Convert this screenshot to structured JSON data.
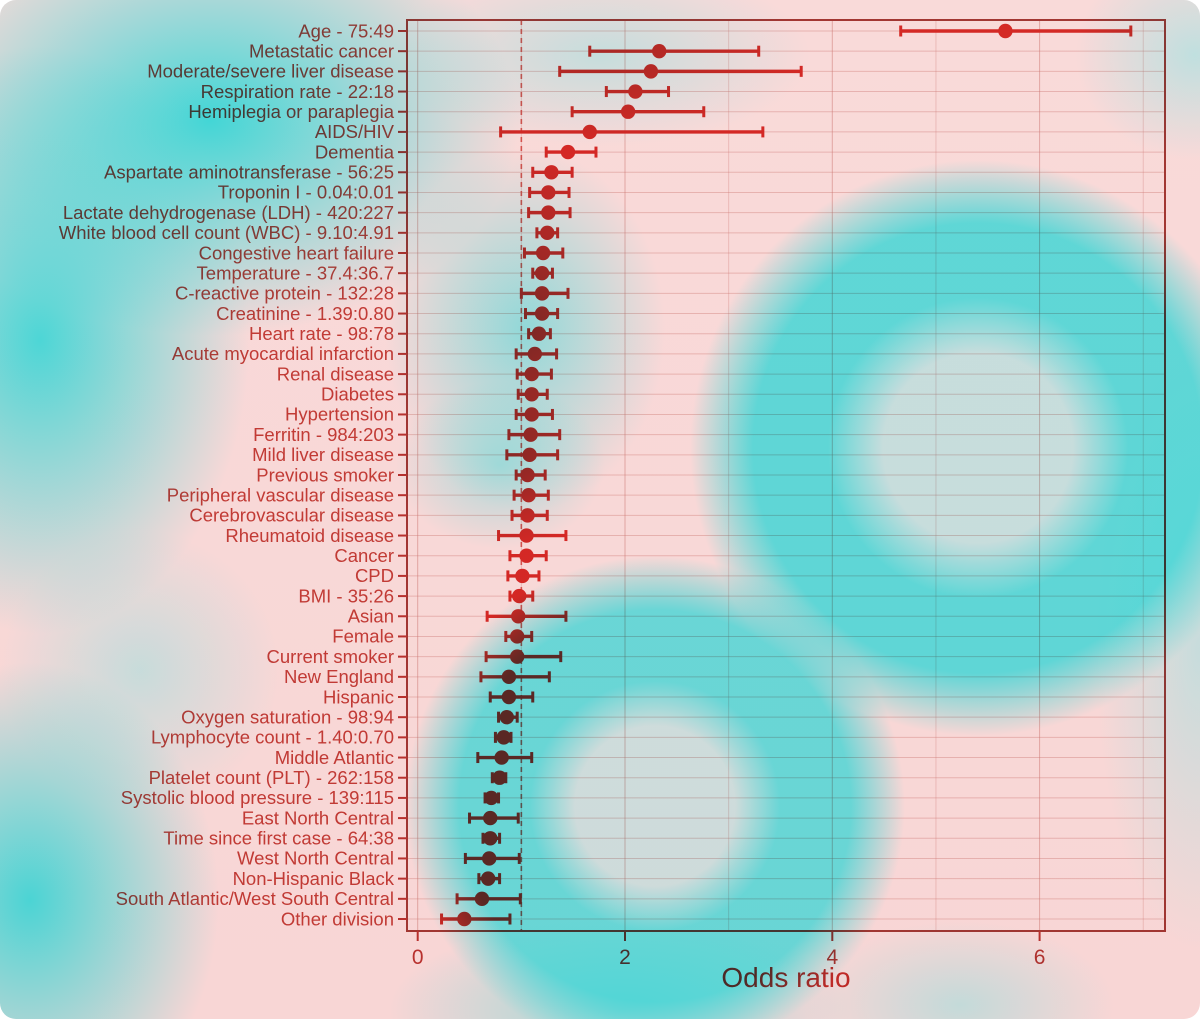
{
  "colors": {
    "background_pink": "#f8d7d6",
    "virus_cyan": "#34d6d6",
    "marker_red": "#d92f2b",
    "label_red": "#c7453f",
    "tick_red": "#bd3a37",
    "grid_red": "#d08680",
    "panel_border": "#a6403c",
    "refline_red": "#da615c"
  },
  "chart_data": {
    "type": "scatter",
    "subtype": "forest-plot",
    "title": "",
    "xlabel": "Odds ratio",
    "x_ticks": [
      0,
      2,
      4,
      6
    ],
    "x_gridlines": [
      0,
      1,
      2,
      3,
      4,
      5,
      6,
      7
    ],
    "xlim": [
      -0.1,
      7.31
    ],
    "reference_line": 1,
    "grid": true,
    "legend": "none",
    "rows": [
      {
        "label": "Age - 75:49",
        "or": 5.67,
        "lo": 4.66,
        "hi": 6.88
      },
      {
        "label": "Metastatic cancer",
        "or": 2.33,
        "lo": 1.66,
        "hi": 3.29
      },
      {
        "label": "Moderate/severe liver disease",
        "or": 2.25,
        "lo": 1.37,
        "hi": 3.7
      },
      {
        "label": "Respiration rate - 22:18",
        "or": 2.1,
        "lo": 1.82,
        "hi": 2.42
      },
      {
        "label": "Hemiplegia or paraplegia",
        "or": 2.03,
        "lo": 1.49,
        "hi": 2.76
      },
      {
        "label": "AIDS/HIV",
        "or": 1.66,
        "lo": 0.8,
        "hi": 3.33
      },
      {
        "label": "Dementia",
        "or": 1.45,
        "lo": 1.24,
        "hi": 1.72
      },
      {
        "label": "Aspartate aminotransferase - 56:25",
        "or": 1.29,
        "lo": 1.11,
        "hi": 1.49
      },
      {
        "label": "Troponin I - 0.04:0.01",
        "or": 1.26,
        "lo": 1.08,
        "hi": 1.46
      },
      {
        "label": "Lactate dehydrogenase (LDH) - 420:227",
        "or": 1.26,
        "lo": 1.07,
        "hi": 1.47
      },
      {
        "label": "White blood cell count (WBC) - 9.10:4.91",
        "or": 1.25,
        "lo": 1.15,
        "hi": 1.35
      },
      {
        "label": "Congestive heart failure",
        "or": 1.21,
        "lo": 1.03,
        "hi": 1.4
      },
      {
        "label": "Temperature - 37.4:36.7",
        "or": 1.2,
        "lo": 1.11,
        "hi": 1.3
      },
      {
        "label": "C-reactive protein - 132:28",
        "or": 1.2,
        "lo": 1.0,
        "hi": 1.45
      },
      {
        "label": "Creatinine - 1.39:0.80",
        "or": 1.2,
        "lo": 1.04,
        "hi": 1.35
      },
      {
        "label": "Heart rate - 98:78",
        "or": 1.17,
        "lo": 1.07,
        "hi": 1.28
      },
      {
        "label": "Acute myocardial infarction",
        "or": 1.13,
        "lo": 0.95,
        "hi": 1.34
      },
      {
        "label": "Renal disease",
        "or": 1.1,
        "lo": 0.96,
        "hi": 1.29
      },
      {
        "label": "Diabetes",
        "or": 1.1,
        "lo": 0.97,
        "hi": 1.25
      },
      {
        "label": "Hypertension",
        "or": 1.1,
        "lo": 0.95,
        "hi": 1.3
      },
      {
        "label": "Ferritin - 984:203",
        "or": 1.09,
        "lo": 0.88,
        "hi": 1.37
      },
      {
        "label": "Mild liver disease",
        "or": 1.08,
        "lo": 0.86,
        "hi": 1.35
      },
      {
        "label": "Previous smoker",
        "or": 1.06,
        "lo": 0.95,
        "hi": 1.23
      },
      {
        "label": "Peripheral vascular disease",
        "or": 1.07,
        "lo": 0.93,
        "hi": 1.26
      },
      {
        "label": "Cerebrovascular disease",
        "or": 1.06,
        "lo": 0.91,
        "hi": 1.25
      },
      {
        "label": "Rheumatoid disease",
        "or": 1.05,
        "lo": 0.78,
        "hi": 1.43
      },
      {
        "label": "Cancer",
        "or": 1.05,
        "lo": 0.89,
        "hi": 1.24
      },
      {
        "label": "CPD",
        "or": 1.01,
        "lo": 0.87,
        "hi": 1.17
      },
      {
        "label": "BMI - 35:26",
        "or": 0.98,
        "lo": 0.89,
        "hi": 1.11
      },
      {
        "label": "Asian",
        "or": 0.97,
        "lo": 0.67,
        "hi": 1.43
      },
      {
        "label": "Female",
        "or": 0.96,
        "lo": 0.85,
        "hi": 1.1
      },
      {
        "label": "Current smoker",
        "or": 0.96,
        "lo": 0.66,
        "hi": 1.38
      },
      {
        "label": "New England",
        "or": 0.88,
        "lo": 0.61,
        "hi": 1.27
      },
      {
        "label": "Hispanic",
        "or": 0.88,
        "lo": 0.7,
        "hi": 1.11
      },
      {
        "label": "Oxygen saturation - 98:94",
        "or": 0.86,
        "lo": 0.78,
        "hi": 0.96
      },
      {
        "label": "Lymphocyte count - 1.40:0.70",
        "or": 0.83,
        "lo": 0.75,
        "hi": 0.9
      },
      {
        "label": "Middle Atlantic",
        "or": 0.81,
        "lo": 0.58,
        "hi": 1.1
      },
      {
        "label": "Platelet count (PLT) - 262:158",
        "or": 0.79,
        "lo": 0.72,
        "hi": 0.85
      },
      {
        "label": "Systolic blood pressure - 139:115",
        "or": 0.71,
        "lo": 0.65,
        "hi": 0.78
      },
      {
        "label": "East North Central",
        "or": 0.7,
        "lo": 0.5,
        "hi": 0.97
      },
      {
        "label": "Time since first case - 64:38",
        "or": 0.7,
        "lo": 0.63,
        "hi": 0.79
      },
      {
        "label": "West North Central",
        "or": 0.69,
        "lo": 0.46,
        "hi": 0.98
      },
      {
        "label": "Non-Hispanic Black",
        "or": 0.68,
        "lo": 0.59,
        "hi": 0.79
      },
      {
        "label": "South Atlantic/West South Central",
        "or": 0.62,
        "lo": 0.38,
        "hi": 0.99
      },
      {
        "label": "Other division",
        "or": 0.45,
        "lo": 0.23,
        "hi": 0.89
      }
    ]
  }
}
